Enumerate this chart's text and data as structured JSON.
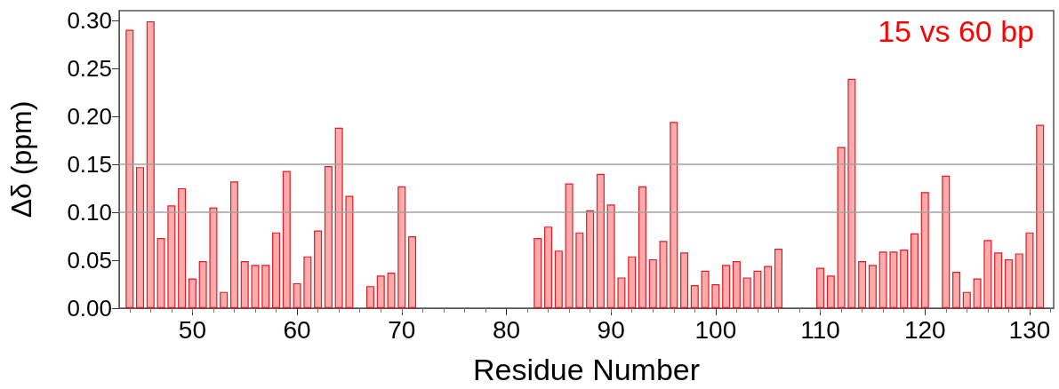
{
  "chart_data": {
    "type": "bar",
    "xlabel": "Residue Number",
    "ylabel": "Δδ (ppm)",
    "annotations": [
      "15 vs 60 bp"
    ],
    "x": [
      44,
      45,
      46,
      47,
      48,
      49,
      50,
      51,
      52,
      53,
      54,
      55,
      56,
      57,
      58,
      59,
      60,
      61,
      62,
      63,
      64,
      65,
      67,
      68,
      69,
      70,
      71,
      83,
      84,
      85,
      86,
      87,
      88,
      89,
      90,
      91,
      92,
      93,
      94,
      95,
      96,
      97,
      98,
      99,
      100,
      101,
      102,
      103,
      104,
      105,
      106,
      110,
      111,
      112,
      113,
      114,
      115,
      116,
      117,
      118,
      119,
      120,
      122,
      123,
      124,
      125,
      126,
      127,
      128,
      129,
      130,
      131
    ],
    "values": [
      0.29,
      0.147,
      0.299,
      0.073,
      0.107,
      0.125,
      0.031,
      0.049,
      0.105,
      0.017,
      0.132,
      0.049,
      0.045,
      0.045,
      0.079,
      0.143,
      0.026,
      0.054,
      0.081,
      0.148,
      0.188,
      0.117,
      0.023,
      0.034,
      0.037,
      0.127,
      0.075,
      0.073,
      0.085,
      0.06,
      0.13,
      0.079,
      0.102,
      0.14,
      0.108,
      0.032,
      0.054,
      0.127,
      0.051,
      0.07,
      0.194,
      0.058,
      0.024,
      0.039,
      0.025,
      0.045,
      0.049,
      0.032,
      0.039,
      0.044,
      0.062,
      0.042,
      0.034,
      0.168,
      0.239,
      0.049,
      0.045,
      0.059,
      0.059,
      0.061,
      0.078,
      0.121,
      0.138,
      0.038,
      0.017,
      0.031,
      0.071,
      0.058,
      0.051,
      0.057,
      0.079,
      0.191
    ],
    "color": "#ffa6a6",
    "xlim": [
      43,
      132.3
    ],
    "xticks": [
      50,
      60,
      70,
      80,
      90,
      100,
      110,
      120,
      130
    ],
    "ylim": [
      0,
      0.31
    ],
    "yticks": [
      {
        "value": 0,
        "label": "0.00"
      },
      {
        "value": 0.05,
        "label": "0.05"
      },
      {
        "value": 0.1,
        "label": "0.10"
      },
      {
        "value": 0.15,
        "label": "0.15"
      },
      {
        "value": 0.2,
        "label": "0.20"
      },
      {
        "value": 0.25,
        "label": "0.25"
      },
      {
        "value": 0.3,
        "label": "0.30"
      }
    ],
    "ref_lines": [
      {
        "axis": "y",
        "value": 0.1,
        "color": "#a0a0a0"
      },
      {
        "axis": "y",
        "value": 0.15,
        "color": "#a0a0a0"
      }
    ],
    "grid": false
  }
}
